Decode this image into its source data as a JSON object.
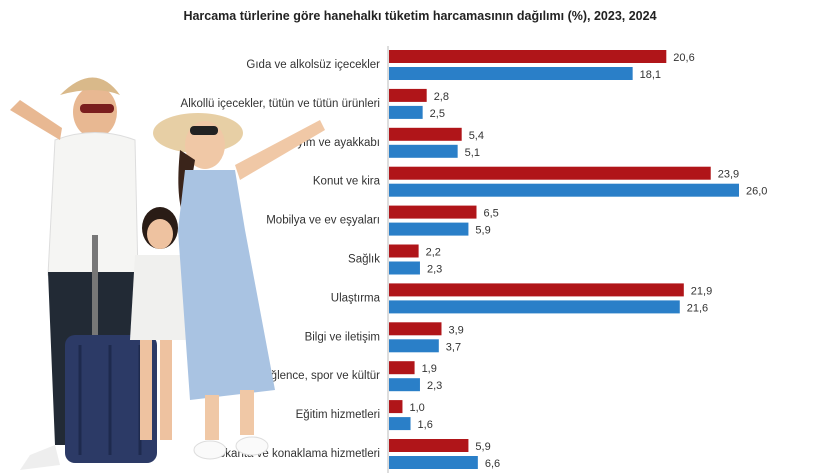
{
  "chart_data": {
    "type": "bar",
    "orientation": "horizontal",
    "title": "Harcama türlerine göre hanehalkı tüketim harcamasının dağılımı (%), 2023, 2024",
    "categories": [
      "Gıda ve alkolsüz içecekler",
      "Alkollü içecekler, tütün ve tütün ürünleri",
      "Giyim ve ayakkabı",
      "Konut ve kira",
      "Mobilya ve ev eşyaları",
      "Sağlık",
      "Ulaştırma",
      "Bilgi ve iletişim",
      "Eğlence, spor ve kültür",
      "Eğitim hizmetleri",
      "Lokanta ve konaklama hizmetleri"
    ],
    "series": [
      {
        "values": [
          20.6,
          2.8,
          5.4,
          23.9,
          6.5,
          2.2,
          21.9,
          3.9,
          1.9,
          1.0,
          5.9
        ],
        "color": "#b01519"
      },
      {
        "values": [
          18.1,
          2.5,
          5.1,
          26.0,
          5.9,
          2.3,
          21.6,
          3.7,
          2.3,
          1.6,
          6.6
        ],
        "color": "#2a7fc8"
      }
    ],
    "value_labels": [
      [
        "20,6",
        "2,8",
        "5,4",
        "23,9",
        "6,5",
        "2,2",
        "21,9",
        "3,9",
        "1,9",
        "1,0",
        "5,9"
      ],
      [
        "18,1",
        "2,5",
        "5,1",
        "26,0",
        "5,9",
        "2,3",
        "21,6",
        "3,7",
        "2,3",
        "1,6",
        "6,6"
      ]
    ],
    "xlim": [
      0,
      26
    ],
    "grid": false,
    "legend": "none"
  },
  "photo": {
    "subject": "family-with-suitcase"
  }
}
